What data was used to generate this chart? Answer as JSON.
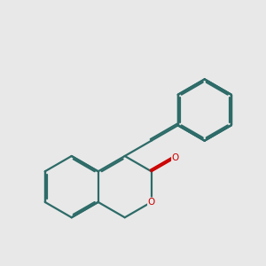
{
  "background_color": "#e8e8e8",
  "bond_color": "#2d6b68",
  "oxygen_color": "#cc0000",
  "lw": 1.6,
  "dbg": 0.055,
  "dbt": 0.1,
  "figsize": [
    3.0,
    3.0
  ],
  "dpi": 100,
  "xlim": [
    -0.5,
    7.5
  ],
  "ylim": [
    -0.5,
    8.0
  ]
}
